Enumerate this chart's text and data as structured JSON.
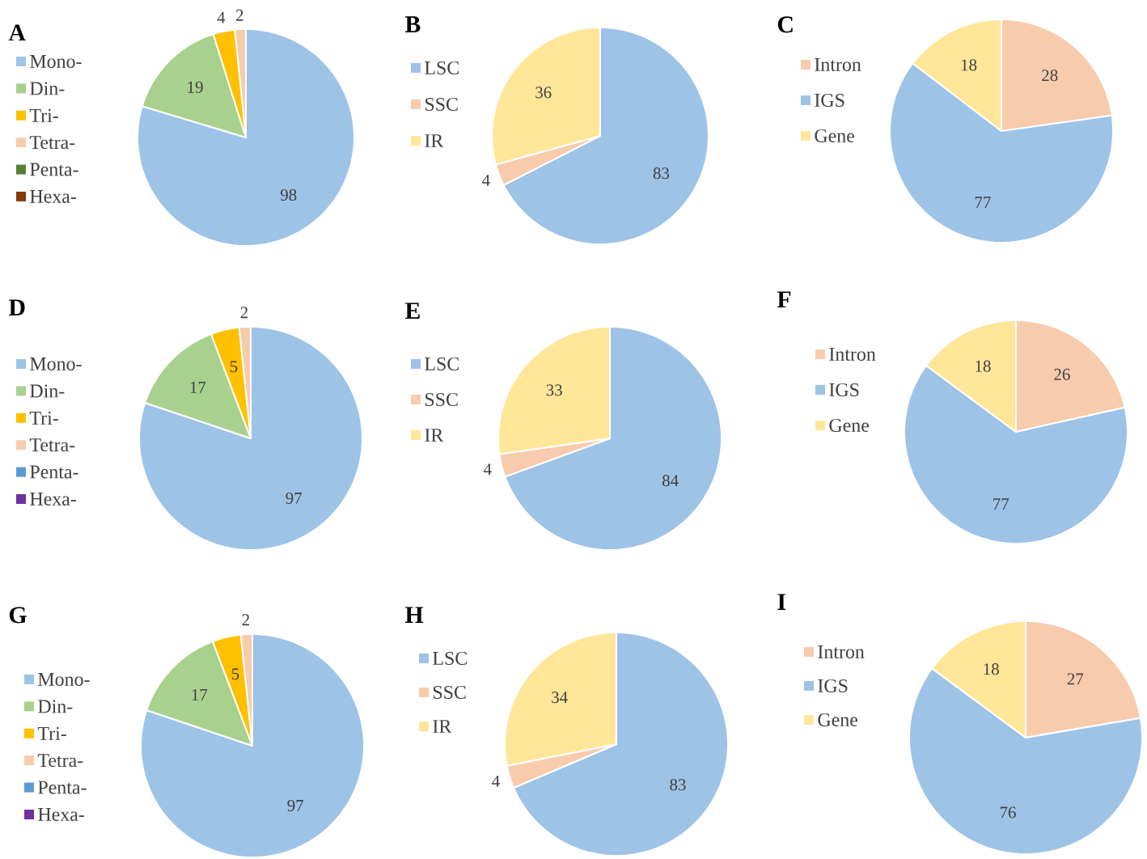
{
  "chart_data": [
    {
      "type": "pie",
      "title": "A",
      "categories": [
        "Mono-",
        "Din-",
        "Tri-",
        "Tetra-",
        "Penta-",
        "Hexa-"
      ],
      "values": [
        98,
        19,
        4,
        2,
        0,
        0
      ],
      "value_labels": [
        "98",
        "19",
        "4",
        "2",
        null,
        null
      ],
      "colors": [
        "#9dc3e6",
        "#a9d18e",
        "#ffc000",
        "#f8cbad",
        "#548235",
        "#843c0c"
      ],
      "legend": "left"
    },
    {
      "type": "pie",
      "title": "B",
      "categories": [
        "LSC",
        "SSC",
        "IR"
      ],
      "values": [
        83,
        4,
        36
      ],
      "data_labels": true,
      "colors": [
        "#9dc3e6",
        "#f8cbad",
        "#ffe699"
      ],
      "legend": "left"
    },
    {
      "type": "pie",
      "title": "C",
      "categories": [
        "Intron",
        "IGS",
        "Gene"
      ],
      "values": [
        28,
        77,
        18
      ],
      "data_labels": true,
      "colors": [
        "#f8cbad",
        "#9dc3e6",
        "#ffe699"
      ],
      "legend": "left"
    },
    {
      "type": "pie",
      "title": "D",
      "categories": [
        "Mono-",
        "Din-",
        "Tri-",
        "Tetra-",
        "Penta-",
        "Hexa-"
      ],
      "values": [
        97,
        17,
        5,
        2,
        0,
        0
      ],
      "value_labels": [
        "97",
        "17",
        "5",
        "2",
        null,
        null
      ],
      "colors": [
        "#9dc3e6",
        "#a9d18e",
        "#ffc000",
        "#f8cbad",
        "#5b9bd5",
        "#7030a0"
      ],
      "legend": "left"
    },
    {
      "type": "pie",
      "title": "E",
      "categories": [
        "LSC",
        "SSC",
        "IR"
      ],
      "values": [
        84,
        4,
        33
      ],
      "data_labels": true,
      "colors": [
        "#9dc3e6",
        "#f8cbad",
        "#ffe699"
      ],
      "legend": "left"
    },
    {
      "type": "pie",
      "title": "F",
      "categories": [
        "Intron",
        "IGS",
        "Gene"
      ],
      "values": [
        26,
        77,
        18
      ],
      "data_labels": true,
      "colors": [
        "#f8cbad",
        "#9dc3e6",
        "#ffe699"
      ],
      "legend": "left"
    },
    {
      "type": "pie",
      "title": "G",
      "categories": [
        "Mono-",
        "Din-",
        "Tri-",
        "Tetra-",
        "Penta-",
        "Hexa-"
      ],
      "values": [
        97,
        17,
        5,
        2,
        0,
        0
      ],
      "value_labels": [
        "97",
        "17",
        "5",
        "2",
        null,
        null
      ],
      "colors": [
        "#9dc3e6",
        "#a9d18e",
        "#ffc000",
        "#f8cbad",
        "#5b9bd5",
        "#7030a0"
      ],
      "legend": "left"
    },
    {
      "type": "pie",
      "title": "H",
      "categories": [
        "LSC",
        "SSC",
        "IR"
      ],
      "values": [
        83,
        4,
        34
      ],
      "data_labels": true,
      "colors": [
        "#9dc3e6",
        "#f8cbad",
        "#ffe699"
      ],
      "legend": "left"
    },
    {
      "type": "pie",
      "title": "I",
      "categories": [
        "Intron",
        "IGS",
        "Gene"
      ],
      "values": [
        27,
        76,
        18
      ],
      "data_labels": true,
      "colors": [
        "#f8cbad",
        "#9dc3e6",
        "#ffe699"
      ],
      "legend": "left"
    }
  ]
}
